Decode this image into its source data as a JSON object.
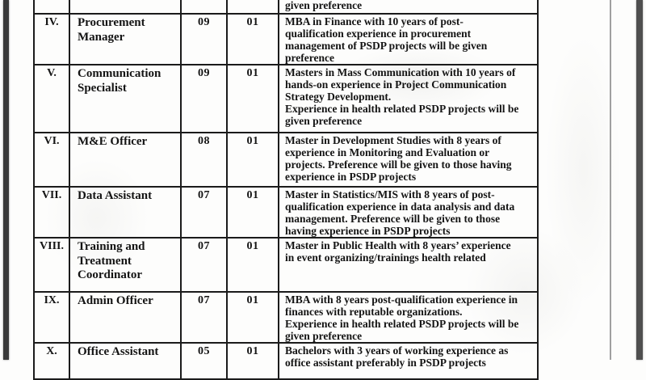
{
  "scan": {
    "paper_color": "#fdfdfc",
    "ink_color": "#141414",
    "border_color": "#1b1b1b",
    "left_bar_color": "#3a3a3a",
    "right_bar_color": "#4f4f4f",
    "rule_color": "#8f8f8f"
  },
  "table": {
    "carryover": {
      "qualification": "given preference"
    },
    "rows": [
      {
        "sno": "IV.",
        "position": "Procurement Manager",
        "scale": "09",
        "posts": "01",
        "qualification_lines": [
          "MBA in Finance with 10 years of post-",
          "qualification experience in procurement",
          "management of PSDP projects will be given",
          "preference"
        ]
      },
      {
        "sno": "V.",
        "position": "Communication Specialist",
        "scale": "09",
        "posts": "01",
        "qualification_lines": [
          "Masters in Mass Communication with 10 years of",
          "hands-on experience in Project Communication",
          "Strategy Development.",
          "Experience in health related PSDP projects will be",
          "given preference"
        ]
      },
      {
        "sno": "VI.",
        "position": "M&E Officer",
        "scale": "08",
        "posts": "01",
        "qualification_lines": [
          "Master in Development Studies with 8 years of",
          "experience in Monitoring and Evaluation or",
          "projects. Preference will be given to those having",
          "experience in PSDP projects"
        ]
      },
      {
        "sno": "VII.",
        "position": "Data Assistant",
        "scale": "07",
        "posts": "01",
        "qualification_lines": [
          "Master in Statistics/MIS with 8 years of post-",
          "qualification experience in data analysis and data",
          "management. Preference will be given to those",
          "having experience in PSDP projects"
        ]
      },
      {
        "sno": "VIII.",
        "position": "Training and Treatment Coordinator",
        "scale": "07",
        "posts": "01",
        "qualification_lines": [
          "Master in Public Health with 8 years’ experience",
          "in event organizing/trainings health related"
        ]
      },
      {
        "sno": "IX.",
        "position": "Admin Officer",
        "scale": "07",
        "posts": "01",
        "qualification_lines": [
          "MBA with 8 years post-qualification experience in",
          "finances with reputable organizations.",
          "Experience in health related PSDP projects will be",
          "given preference"
        ]
      },
      {
        "sno": "X.",
        "position": "Office Assistant",
        "scale": "05",
        "posts": "01",
        "qualification_lines": [
          "Bachelors with 3 years of working experience as",
          "office assistant preferably in PSDP projects"
        ]
      }
    ]
  }
}
